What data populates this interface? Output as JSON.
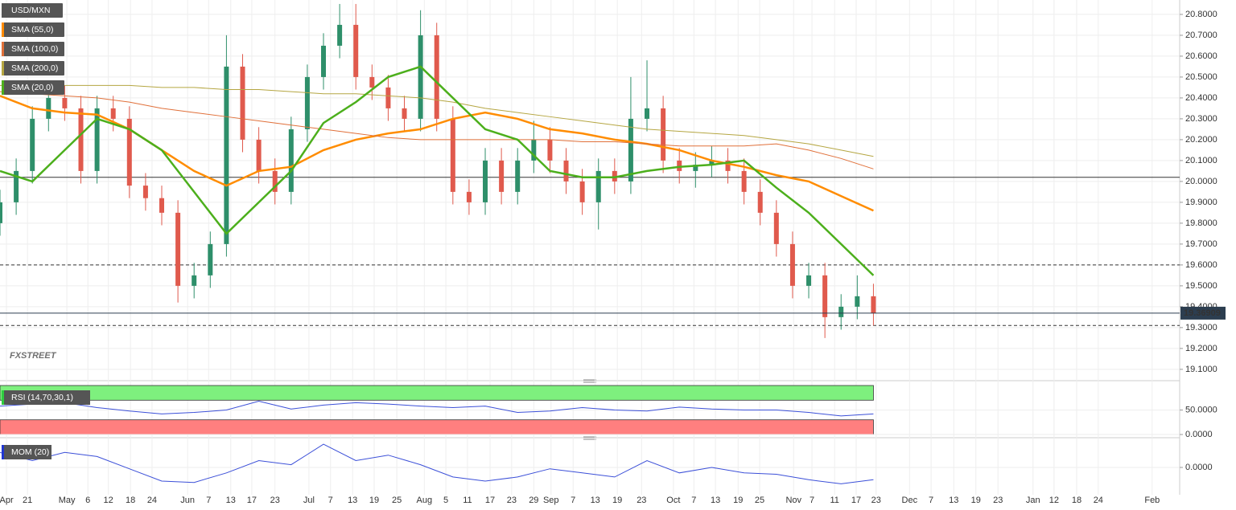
{
  "chart_data": [
    {
      "type": "candlestick",
      "name": "USD/MXN",
      "watermark": "FXSTREET",
      "up_color": "#2e8f6a",
      "down_color": "#e05a4d",
      "xlim": [
        0,
        218.8
      ],
      "ylim": [
        19.061,
        20.869
      ],
      "grid": true,
      "x": [
        0,
        3,
        6,
        9,
        12,
        15,
        18,
        21,
        24,
        27,
        30,
        33,
        36,
        39,
        42,
        45,
        48,
        51,
        54,
        57,
        60,
        63,
        66,
        69,
        72,
        75,
        78,
        81,
        84,
        87,
        90,
        93,
        96,
        99,
        102,
        105,
        108,
        111,
        114,
        117,
        120,
        123,
        126,
        129,
        132,
        135,
        138,
        141,
        144,
        147,
        150,
        153,
        156,
        159,
        162
      ],
      "open": [
        19.8,
        19.9,
        20.05,
        20.3,
        20.4,
        20.35,
        20.05,
        20.35,
        20.3,
        19.98,
        19.92,
        19.85,
        19.5,
        19.55,
        19.7,
        20.55,
        20.2,
        20.05,
        19.95,
        20.25,
        20.5,
        20.65,
        20.75,
        20.5,
        20.45,
        20.35,
        20.3,
        20.7,
        20.3,
        19.95,
        19.9,
        20.1,
        19.95,
        20.1,
        20.2,
        20.1,
        20.0,
        19.9,
        20.05,
        20.0,
        20.3,
        20.35,
        20.1,
        20.05,
        20.08,
        20.1,
        20.05,
        19.95,
        19.85,
        19.7,
        19.5,
        19.55,
        19.35,
        19.4,
        19.45
      ],
      "high": [
        19.96,
        20.11,
        20.36,
        20.46,
        20.46,
        20.41,
        20.41,
        20.41,
        20.36,
        20.04,
        19.98,
        19.91,
        19.61,
        19.76,
        20.7,
        20.61,
        20.26,
        20.11,
        20.31,
        20.56,
        20.71,
        20.85,
        20.85,
        20.56,
        20.51,
        20.41,
        20.82,
        20.76,
        20.36,
        20.01,
        20.16,
        20.16,
        20.16,
        20.29,
        20.26,
        20.16,
        20.06,
        20.11,
        20.11,
        20.5,
        20.58,
        20.41,
        20.16,
        20.14,
        20.17,
        20.16,
        20.11,
        20.01,
        19.91,
        19.76,
        19.61,
        19.61,
        19.46,
        19.55,
        19.51
      ],
      "low": [
        19.74,
        19.84,
        19.99,
        20.24,
        20.29,
        19.99,
        19.99,
        20.24,
        19.92,
        19.86,
        19.79,
        19.42,
        19.44,
        19.49,
        19.64,
        20.14,
        19.99,
        19.89,
        19.89,
        20.19,
        20.44,
        20.59,
        20.44,
        20.39,
        20.29,
        20.24,
        20.24,
        20.24,
        19.89,
        19.84,
        19.84,
        19.89,
        19.89,
        20.04,
        20.04,
        19.94,
        19.84,
        19.77,
        19.94,
        19.94,
        20.24,
        20.04,
        19.99,
        19.97,
        20.02,
        19.99,
        19.89,
        19.79,
        19.64,
        19.44,
        19.44,
        19.25,
        19.29,
        19.34,
        19.31
      ],
      "close": [
        19.9,
        20.05,
        20.3,
        20.4,
        20.35,
        20.05,
        20.35,
        20.3,
        19.98,
        19.92,
        19.85,
        19.5,
        19.55,
        19.7,
        20.55,
        20.2,
        20.05,
        19.95,
        20.25,
        20.5,
        20.65,
        20.75,
        20.5,
        20.45,
        20.35,
        20.3,
        20.7,
        20.3,
        19.95,
        19.9,
        20.1,
        19.95,
        20.1,
        20.2,
        20.1,
        20.0,
        19.9,
        20.05,
        20.0,
        20.3,
        20.35,
        20.1,
        20.05,
        20.08,
        20.1,
        20.05,
        19.95,
        19.85,
        19.7,
        19.5,
        19.55,
        19.35,
        19.4,
        19.45,
        19.37
      ],
      "series": [
        {
          "name": "SMA (55,0)",
          "color": "#ff8c00",
          "width": 2.5,
          "x": [
            0,
            6,
            12,
            18,
            24,
            30,
            36,
            42,
            48,
            54,
            60,
            66,
            72,
            78,
            84,
            90,
            96,
            102,
            108,
            114,
            120,
            126,
            132,
            138,
            144,
            150,
            156,
            162
          ],
          "values": [
            20.41,
            20.35,
            20.33,
            20.32,
            20.25,
            20.15,
            20.05,
            19.98,
            20.05,
            20.07,
            20.15,
            20.2,
            20.23,
            20.25,
            20.3,
            20.33,
            20.3,
            20.25,
            20.23,
            20.2,
            20.18,
            20.15,
            20.1,
            20.07,
            20.03,
            20.0,
            19.93,
            19.86
          ]
        },
        {
          "name": "SMA (100,0)",
          "color": "#e0703a",
          "width": 1,
          "x": [
            0,
            6,
            12,
            18,
            24,
            30,
            36,
            42,
            48,
            54,
            60,
            66,
            72,
            78,
            84,
            90,
            96,
            102,
            108,
            114,
            120,
            126,
            132,
            138,
            144,
            150,
            156,
            162
          ],
          "values": [
            20.43,
            20.42,
            20.41,
            20.4,
            20.38,
            20.35,
            20.33,
            20.31,
            20.29,
            20.27,
            20.25,
            20.23,
            20.21,
            20.2,
            20.2,
            20.2,
            20.2,
            20.2,
            20.19,
            20.19,
            20.18,
            20.17,
            20.17,
            20.17,
            20.18,
            20.15,
            20.11,
            20.06
          ]
        },
        {
          "name": "SMA (200,0)",
          "color": "#b5a642",
          "width": 1,
          "x": [
            0,
            6,
            12,
            18,
            24,
            30,
            36,
            42,
            48,
            54,
            60,
            66,
            72,
            78,
            84,
            90,
            96,
            102,
            108,
            114,
            120,
            126,
            132,
            138,
            144,
            150,
            156,
            162
          ],
          "values": [
            20.46,
            20.46,
            20.46,
            20.46,
            20.46,
            20.45,
            20.45,
            20.44,
            20.44,
            20.43,
            20.42,
            20.42,
            20.41,
            20.4,
            20.38,
            20.35,
            20.33,
            20.31,
            20.29,
            20.27,
            20.25,
            20.24,
            20.23,
            20.22,
            20.2,
            20.18,
            20.15,
            20.12
          ]
        },
        {
          "name": "SMA (20,0)",
          "color": "#4caf1c",
          "width": 2.5,
          "x": [
            0,
            6,
            12,
            18,
            24,
            30,
            36,
            42,
            48,
            54,
            60,
            66,
            72,
            78,
            84,
            90,
            96,
            102,
            108,
            114,
            120,
            126,
            132,
            138,
            144,
            150,
            156,
            162
          ],
          "values": [
            20.05,
            20.0,
            20.15,
            20.3,
            20.25,
            20.15,
            19.95,
            19.75,
            19.9,
            20.05,
            20.28,
            20.38,
            20.5,
            20.55,
            20.4,
            20.25,
            20.2,
            20.05,
            20.02,
            20.02,
            20.05,
            20.07,
            20.08,
            20.1,
            19.97,
            19.85,
            19.7,
            19.55
          ]
        }
      ],
      "levels": [
        {
          "value": 20.02,
          "style": "solid"
        },
        {
          "value": 19.6,
          "style": "dashed"
        },
        {
          "value": 19.31,
          "style": "dashed"
        }
      ],
      "last_price": 19.36909,
      "yticks": [
        {
          "value": 20.8,
          "label": "20.8000"
        },
        {
          "value": 20.7,
          "label": "20.7000"
        },
        {
          "value": 20.6,
          "label": "20.6000"
        },
        {
          "value": 20.5,
          "label": "20.5000"
        },
        {
          "value": 20.4,
          "label": "20.4000"
        },
        {
          "value": 20.3,
          "label": "20.3000"
        },
        {
          "value": 20.2,
          "label": "20.2000"
        },
        {
          "value": 20.1,
          "label": "20.1000"
        },
        {
          "value": 20.0,
          "label": "20.0000"
        },
        {
          "value": 19.9,
          "label": "19.9000"
        },
        {
          "value": 19.8,
          "label": "19.8000"
        },
        {
          "value": 19.7,
          "label": "19.7000"
        },
        {
          "value": 19.6,
          "label": "19.6000"
        },
        {
          "value": 19.5,
          "label": "19.5000"
        },
        {
          "value": 19.4,
          "label": "19.4000"
        },
        {
          "value": 19.3,
          "label": "19.3000"
        },
        {
          "value": 19.2,
          "label": "19.2000"
        },
        {
          "value": 19.1,
          "label": "19.1000"
        }
      ],
      "xticks": [
        {
          "value": 1.2,
          "label": "Apr"
        },
        {
          "value": 5.1,
          "label": "21"
        },
        {
          "value": 12.4,
          "label": "May"
        },
        {
          "value": 16.3,
          "label": "6"
        },
        {
          "value": 20.1,
          "label": "12"
        },
        {
          "value": 24.2,
          "label": "18"
        },
        {
          "value": 28.2,
          "label": "24"
        },
        {
          "value": 34.8,
          "label": "Jun"
        },
        {
          "value": 38.7,
          "label": "7"
        },
        {
          "value": 42.8,
          "label": "13"
        },
        {
          "value": 46.7,
          "label": "17"
        },
        {
          "value": 51.0,
          "label": "23"
        },
        {
          "value": 57.3,
          "label": "Jul"
        },
        {
          "value": 61.3,
          "label": "7"
        },
        {
          "value": 65.4,
          "label": "13"
        },
        {
          "value": 69.4,
          "label": "19"
        },
        {
          "value": 73.6,
          "label": "25"
        },
        {
          "value": 78.7,
          "label": "Aug"
        },
        {
          "value": 82.7,
          "label": "5"
        },
        {
          "value": 86.7,
          "label": "11"
        },
        {
          "value": 90.9,
          "label": "17"
        },
        {
          "value": 94.9,
          "label": "23"
        },
        {
          "value": 99.0,
          "label": "29"
        },
        {
          "value": 102.2,
          "label": "Sep"
        },
        {
          "value": 106.3,
          "label": "7"
        },
        {
          "value": 110.4,
          "label": "13"
        },
        {
          "value": 114.5,
          "label": "19"
        },
        {
          "value": 119.0,
          "label": "23"
        },
        {
          "value": 124.9,
          "label": "Oct"
        },
        {
          "value": 128.7,
          "label": "7"
        },
        {
          "value": 132.7,
          "label": "13"
        },
        {
          "value": 136.9,
          "label": "19"
        },
        {
          "value": 140.9,
          "label": "25"
        },
        {
          "value": 147.2,
          "label": "Nov"
        },
        {
          "value": 150.6,
          "label": "7"
        },
        {
          "value": 154.8,
          "label": "11"
        },
        {
          "value": 158.8,
          "label": "17"
        },
        {
          "value": 162.5,
          "label": "23"
        },
        {
          "value": 168.7,
          "label": "Dec"
        },
        {
          "value": 172.7,
          "label": "7"
        },
        {
          "value": 176.9,
          "label": "13"
        },
        {
          "value": 181.0,
          "label": "19"
        },
        {
          "value": 185.1,
          "label": "23"
        },
        {
          "value": 191.6,
          "label": "Jan"
        },
        {
          "value": 195.5,
          "label": "12"
        },
        {
          "value": 199.7,
          "label": "18"
        },
        {
          "value": 203.7,
          "label": "24"
        },
        {
          "value": 213.7,
          "label": "Feb"
        }
      ]
    },
    {
      "type": "line",
      "title": "RSI (14,70,30,1)",
      "color": "#3b4fd8",
      "legend_color": "#2ecc40",
      "ylim": [
        0,
        100
      ],
      "upper_band": [
        70,
        100
      ],
      "upper_color": "#7ef07e",
      "lower_band": [
        0,
        30
      ],
      "lower_color": "#ff7f7f",
      "x": [
        0,
        6,
        12,
        18,
        24,
        30,
        36,
        42,
        48,
        54,
        60,
        66,
        72,
        78,
        84,
        90,
        96,
        102,
        108,
        114,
        120,
        126,
        132,
        138,
        144,
        150,
        156,
        162
      ],
      "values": [
        58,
        62,
        65,
        55,
        48,
        42,
        45,
        50,
        68,
        52,
        60,
        65,
        62,
        58,
        55,
        58,
        45,
        48,
        55,
        50,
        48,
        56,
        52,
        50,
        50,
        45,
        38,
        42
      ],
      "yticks": [
        {
          "value": 50,
          "label": "50.0000"
        },
        {
          "value": 0,
          "label": "0.0000"
        }
      ]
    },
    {
      "type": "line",
      "title": "MOM (20)",
      "color": "#3b4fd8",
      "legend_color": "#2036d0",
      "ylim": [
        -1,
        1
      ],
      "x": [
        0,
        6,
        12,
        18,
        24,
        30,
        36,
        42,
        48,
        54,
        60,
        66,
        72,
        78,
        84,
        90,
        96,
        102,
        108,
        114,
        120,
        126,
        132,
        138,
        144,
        150,
        156,
        162
      ],
      "values": [
        0.55,
        0.25,
        0.55,
        0.4,
        -0.05,
        -0.5,
        -0.55,
        -0.2,
        0.25,
        0.1,
        0.85,
        0.25,
        0.45,
        0.1,
        -0.35,
        -0.5,
        -0.35,
        -0.05,
        -0.2,
        -0.35,
        0.25,
        -0.2,
        0.0,
        -0.2,
        -0.25,
        -0.45,
        -0.6,
        -0.45
      ],
      "yticks": [
        {
          "value": 0,
          "label": "0.0000"
        }
      ]
    }
  ]
}
